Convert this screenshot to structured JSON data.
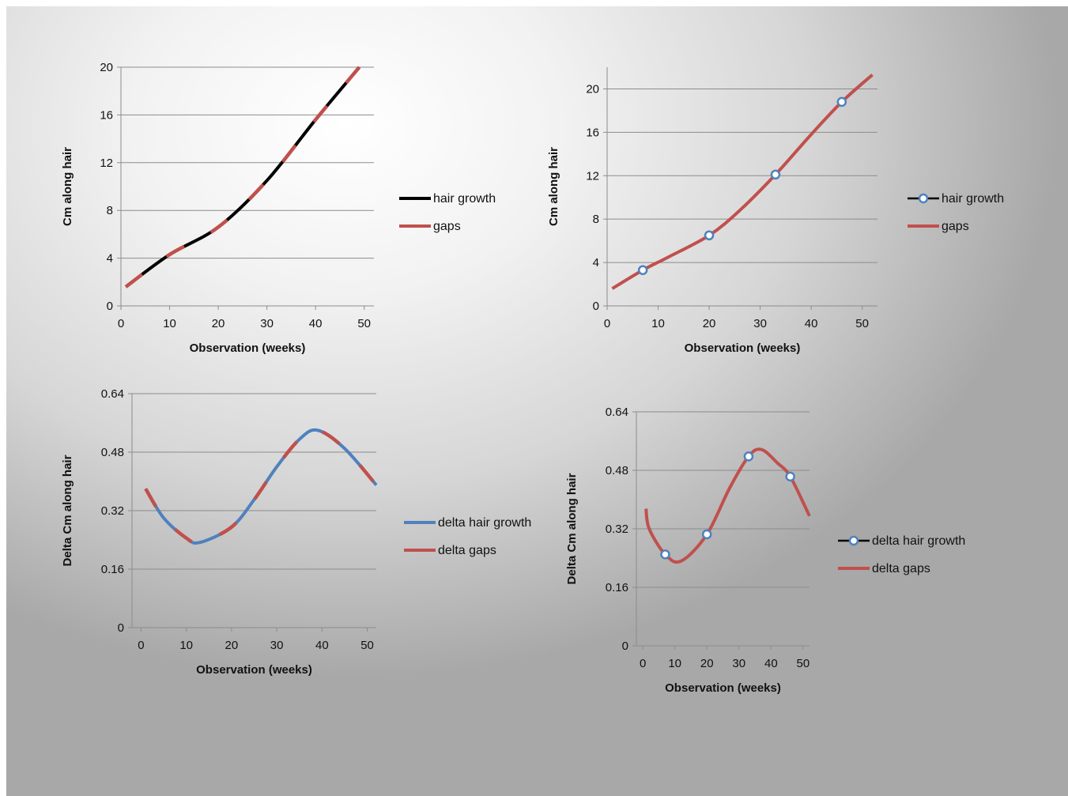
{
  "chart_data": [
    {
      "type": "line",
      "xlabel": "Observation (weeks)",
      "ylabel": "Cm along hair",
      "xlim": [
        0,
        52
      ],
      "ylim": [
        0,
        20
      ],
      "xticks": [
        0,
        10,
        20,
        30,
        40,
        50
      ],
      "yticks": [
        0,
        4,
        8,
        12,
        16,
        20
      ],
      "grid": "horizontal",
      "legend_position": "right",
      "series": [
        {
          "name": "hair growth",
          "color": "#000000",
          "marker": "none",
          "x": [
            1,
            10,
            20,
            30,
            40,
            49
          ],
          "y": [
            1.6,
            4.3,
            6.6,
            10.5,
            15.6,
            20.0
          ]
        },
        {
          "name": "gaps",
          "color": "#c0504d",
          "marker": "none",
          "x": [
            1,
            10,
            20,
            30,
            40,
            49
          ],
          "y": [
            1.6,
            4.3,
            6.6,
            10.5,
            15.6,
            20.0
          ]
        }
      ]
    },
    {
      "type": "line",
      "xlabel": "Observation (weeks)",
      "ylabel": "Cm along hair",
      "xlim": [
        0,
        53
      ],
      "ylim": [
        0,
        22
      ],
      "xticks": [
        0,
        10,
        20,
        30,
        40,
        50
      ],
      "yticks": [
        0,
        4,
        8,
        12,
        16,
        20
      ],
      "grid": "horizontal",
      "legend_position": "right",
      "series": [
        {
          "name": "hair growth",
          "color": "#4f81bd",
          "marker": "circle",
          "x": [
            7,
            20,
            33,
            46
          ],
          "y": [
            3.3,
            6.5,
            12.1,
            18.8
          ]
        },
        {
          "name": "gaps",
          "color": "#c0504d",
          "marker": "none",
          "x": [
            1,
            7,
            12,
            20,
            26,
            33,
            40,
            46,
            52
          ],
          "y": [
            1.6,
            3.3,
            4.5,
            6.5,
            8.8,
            12.1,
            15.8,
            18.8,
            21.3
          ]
        }
      ]
    },
    {
      "type": "line",
      "xlabel": "Observation (weeks)",
      "ylabel": "Delta Cm along hair",
      "xlim": [
        -2,
        52
      ],
      "ylim": [
        0,
        0.64
      ],
      "xticks": [
        0,
        10,
        20,
        30,
        40,
        50
      ],
      "yticks": [
        0,
        0.16,
        0.32,
        0.48,
        0.64
      ],
      "ytick_labels": [
        "0",
        "0.16",
        "0.32",
        "0.48",
        "0.64"
      ],
      "grid": "horizontal",
      "legend_position": "right",
      "series": [
        {
          "name": "delta hair growth",
          "color": "#4f81bd",
          "marker": "none",
          "x": [
            1,
            5,
            10,
            13,
            20,
            25,
            30,
            35,
            39,
            45,
            52
          ],
          "y": [
            0.38,
            0.3,
            0.245,
            0.233,
            0.275,
            0.35,
            0.44,
            0.515,
            0.54,
            0.49,
            0.39
          ]
        },
        {
          "name": "delta gaps",
          "color": "#c0504d",
          "marker": "none",
          "x": [
            1,
            5,
            10,
            13,
            20,
            25,
            30,
            35,
            39,
            45,
            52
          ],
          "y": [
            0.38,
            0.3,
            0.245,
            0.233,
            0.275,
            0.35,
            0.44,
            0.515,
            0.54,
            0.49,
            0.39
          ]
        }
      ]
    },
    {
      "type": "line",
      "xlabel": "Observation (weeks)",
      "ylabel": "Delta Cm along hair",
      "xlim": [
        -2,
        52
      ],
      "ylim": [
        0,
        0.64
      ],
      "xticks": [
        0,
        10,
        20,
        30,
        40,
        50
      ],
      "yticks": [
        0,
        0.16,
        0.32,
        0.48,
        0.64
      ],
      "ytick_labels": [
        "0",
        "0.16",
        "0.32",
        "0.48",
        "0.64"
      ],
      "grid": "horizontal",
      "legend_position": "right",
      "series": [
        {
          "name": "delta hair growth",
          "color": "#4f81bd",
          "marker": "circle",
          "x": [
            7,
            20,
            33,
            46
          ],
          "y": [
            0.25,
            0.305,
            0.518,
            0.463
          ]
        },
        {
          "name": "delta gaps",
          "color": "#c0504d",
          "marker": "none",
          "x": [
            1,
            2,
            7,
            12,
            20,
            27,
            33,
            37,
            42,
            46,
            52
          ],
          "y": [
            0.375,
            0.32,
            0.25,
            0.232,
            0.305,
            0.43,
            0.518,
            0.537,
            0.5,
            0.463,
            0.355
          ]
        }
      ]
    }
  ]
}
